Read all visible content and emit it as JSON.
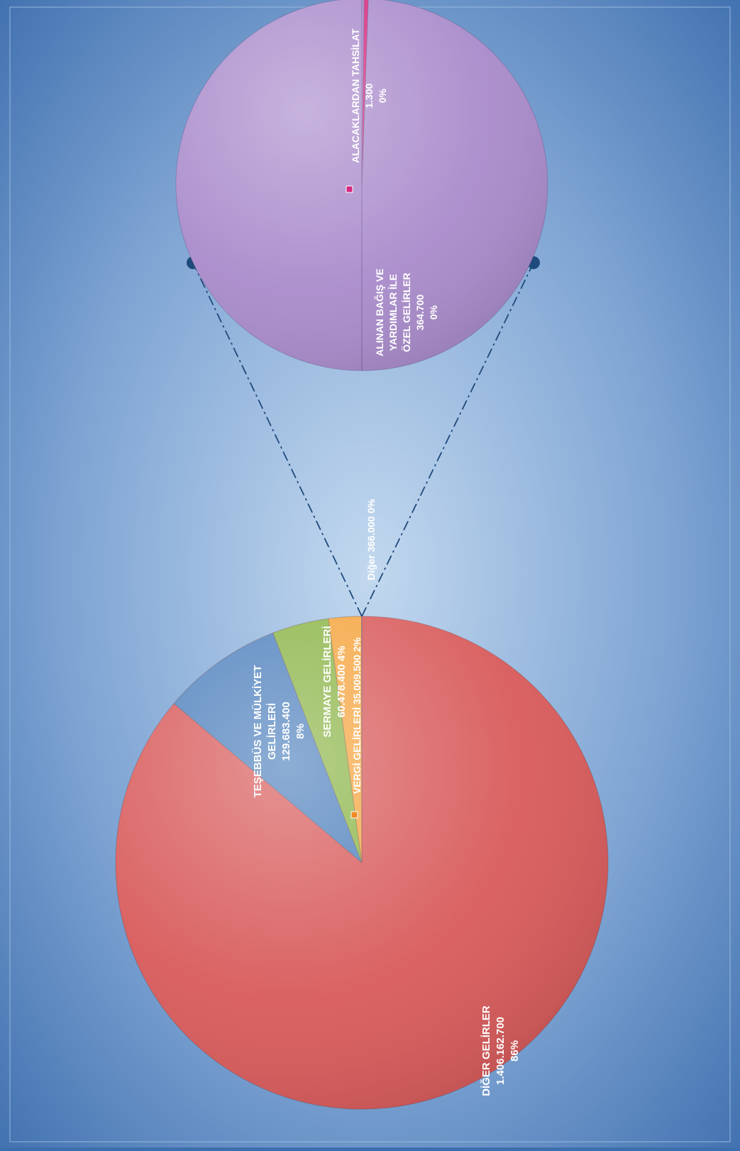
{
  "chart_data": {
    "type": "pie",
    "subtype": "pie-of-pie",
    "orientation": "rotated-90-clockwise",
    "main_pie": {
      "slices": [
        {
          "label": "DİĞER GELİRLER",
          "value": 1406162700,
          "value_text": "1.406.162.700",
          "percent_text": "86%",
          "color": "#d85a5a"
        },
        {
          "label": "TEŞEBBÜS VE MÜLKİYET GELİRLERİ",
          "value": 129683400,
          "value_text": "129.683.400",
          "percent_text": "8%",
          "color": "#4f81bd"
        },
        {
          "label": "SERMAYE GELİRLERİ",
          "value": 60478400,
          "value_text": "60.478.400",
          "percent_text": "4%",
          "color": "#8cb548"
        },
        {
          "label": "VERGİ GELİRLERİ",
          "value": 35009500,
          "value_text": "35.009.500",
          "percent_text": "2%",
          "color": "#f5a540"
        },
        {
          "label": "Diğer",
          "value": 366000,
          "value_text": "366.000",
          "percent_text": "0%",
          "color": "#9b7fc2"
        }
      ]
    },
    "secondary_pie": {
      "slices": [
        {
          "label": "ALINAN BAĞIŞ VE YARDIMLAR İLE ÖZEL GELİRLER",
          "value": 364700,
          "value_text": "364.700",
          "percent_text": "0%",
          "color": "#a98bcb"
        },
        {
          "label": "ALACAKLARDAN TAHSİLAT",
          "value": 1300,
          "value_text": "1.300",
          "percent_text": "0%",
          "color": "#d6287e"
        }
      ]
    },
    "labels": {
      "diger_lines": [
        "DİĞER GELİRLER",
        "1.406.162.700",
        "86%"
      ],
      "tesebbus_lines": [
        "TEŞEBBÜS VE MÜLKİYET",
        "GELİRLERİ",
        "129.683.400",
        "8%"
      ],
      "sermaye_lines": [
        "SERMAYE GELİRLERİ",
        "60.478.400 4%"
      ],
      "vergi_line": "VERGİ GELİRLERİ 35.009.500 2%",
      "other_line": "Diğer 366.000 0%",
      "bagis_lines": [
        "ALINAN BAĞIŞ VE",
        "YARDIMLAR İLE",
        "ÖZEL GELİRLER",
        "364.700",
        "0%"
      ],
      "alacak_lines": [
        "ALACAKLARDAN TAHSİLAT",
        "1.300",
        "0%"
      ]
    },
    "legend": "none",
    "grid": false
  }
}
